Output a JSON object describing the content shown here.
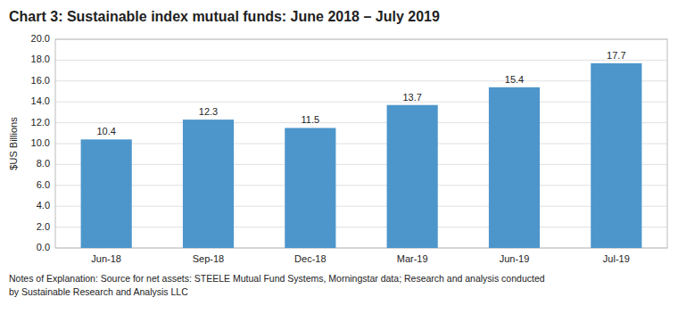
{
  "chart_data": {
    "type": "bar",
    "title": "Chart 3:  Sustainable index mutual funds:  June 2018 – July 2019",
    "categories": [
      "Jun-18",
      "Sep-18",
      "Dec-18",
      "Mar-19",
      "Jun-19",
      "Jul-19"
    ],
    "values": [
      10.4,
      12.3,
      11.5,
      13.7,
      15.4,
      17.7
    ],
    "color": "#4d96cc",
    "ylabel": "$US Billions",
    "ylim": [
      0,
      20.0
    ],
    "yticks": [
      {
        "value": 0.0,
        "label": "0.0"
      },
      {
        "value": 2.0,
        "label": "2.0"
      },
      {
        "value": 4.0,
        "label": "4.0"
      },
      {
        "value": 6.0,
        "label": "6.0"
      },
      {
        "value": 8.0,
        "label": "8.0"
      },
      {
        "value": 10.0,
        "label": "10.0"
      },
      {
        "value": 12.0,
        "label": "12.0"
      },
      {
        "value": 14.0,
        "label": "14.0"
      },
      {
        "value": 16.0,
        "label": "16.0"
      },
      {
        "value": 18.0,
        "label": "18.0"
      },
      {
        "value": 20.0,
        "label": "20.0"
      }
    ],
    "grid": true,
    "data_labels": true,
    "annotations": [
      "Notes of Explanation:  Source for net assets: STEELE Mutual Fund Systems, Morningstar data; Research and analysis conducted",
      "by Sustainable Research and Analysis LLC"
    ]
  }
}
